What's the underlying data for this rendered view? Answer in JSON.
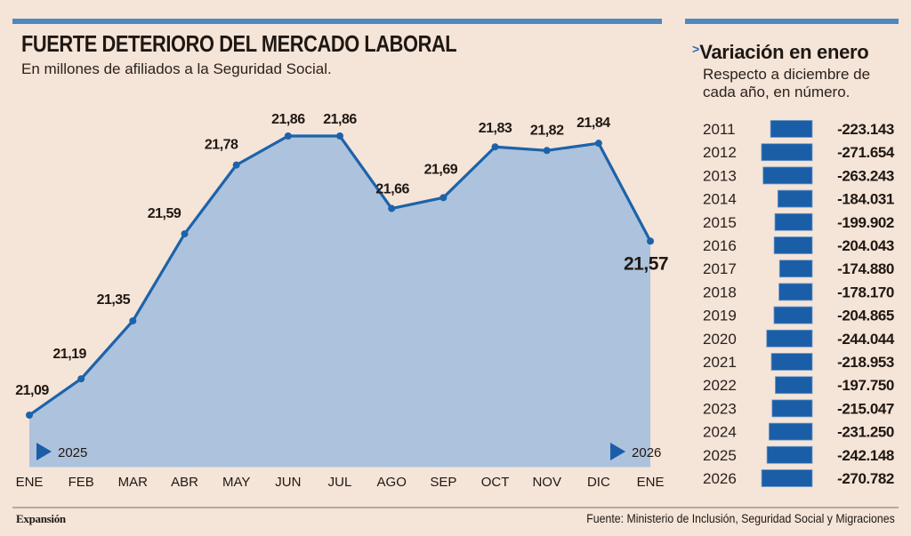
{
  "header": {
    "title": "FUERTE DETERIORO DEL MERCADO LABORAL",
    "subtitle": "En millones de afiliados a la Seguridad Social."
  },
  "sidebar": {
    "title": "Variación en enero",
    "subtitle_line1": "Respecto a diciembre de",
    "subtitle_line2": "cada año, en número."
  },
  "footer": {
    "brand": "Expansión",
    "source": "Fuente: Ministerio de Inclusión, Seguridad Social y Migraciones"
  },
  "colors": {
    "background": "#f5e4d8",
    "accent_bar": "#4f88bf",
    "line": "#1c63aa",
    "area_fill": "#adc2dc",
    "bar": "#1a5ea8",
    "gridline": "#9ea7b3"
  },
  "chart_data": [
    {
      "type": "area",
      "title": "FUERTE DETERIORO DEL MERCADO LABORAL",
      "subtitle": "En millones de afiliados a la Seguridad Social.",
      "categories": [
        "ENE",
        "FEB",
        "MAR",
        "ABR",
        "MAY",
        "JUN",
        "JUL",
        "AGO",
        "SEP",
        "OCT",
        "NOV",
        "DIC",
        "ENE"
      ],
      "values": [
        21.09,
        21.19,
        21.35,
        21.59,
        21.78,
        21.86,
        21.86,
        21.66,
        21.69,
        21.83,
        21.82,
        21.84,
        21.57
      ],
      "labels": [
        "21,09",
        "21,19",
        "21,35",
        "21,59",
        "21,78",
        "21,86",
        "21,86",
        "21,66",
        "21,69",
        "21,83",
        "21,82",
        "21,84",
        "21,57"
      ],
      "year_markers": [
        {
          "label": "2025",
          "category_index": 0
        },
        {
          "label": "2026",
          "category_index": 12
        }
      ],
      "xlabel": "",
      "ylabel": "",
      "ylim": [
        20.95,
        21.95
      ],
      "grid": "vertical",
      "legend": "none"
    },
    {
      "type": "bar",
      "orientation": "horizontal",
      "title": "Variación en enero",
      "subtitle": "Respecto a diciembre de cada año, en número.",
      "categories": [
        "2011",
        "2012",
        "2013",
        "2014",
        "2015",
        "2016",
        "2017",
        "2018",
        "2019",
        "2020",
        "2021",
        "2022",
        "2023",
        "2024",
        "2025",
        "2026"
      ],
      "values": [
        -223143,
        -271654,
        -263243,
        -184031,
        -199902,
        -204043,
        -174880,
        -178170,
        -204865,
        -244044,
        -218953,
        -197750,
        -215047,
        -231250,
        -242148,
        -270782
      ],
      "labels": [
        "-223.143",
        "-271.654",
        "-263.243",
        "-184.031",
        "-199.902",
        "-204.043",
        "-174.880",
        "-178.170",
        "-204.865",
        "-244.044",
        "-218.953",
        "-197.750",
        "-215.047",
        "-231.250",
        "-242.148",
        "-270.782"
      ],
      "xlim": [
        -280000,
        0
      ],
      "grid": "none",
      "legend": "none"
    }
  ]
}
